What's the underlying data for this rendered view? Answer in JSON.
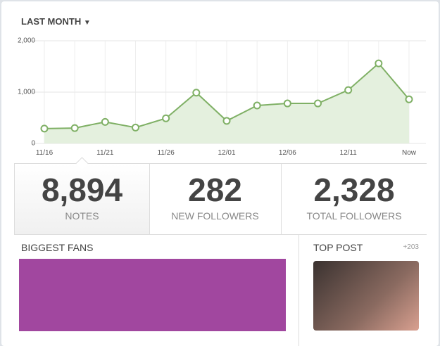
{
  "filter": "LAST MONTH",
  "chart_data": {
    "type": "line",
    "categories": [
      "11/16",
      null,
      "11/21",
      null,
      "11/26",
      null,
      "12/01",
      null,
      "12/06",
      null,
      "12/11",
      null,
      "Now"
    ],
    "series": [
      {
        "color": "#7fb065",
        "values": [
          290,
          300,
          420,
          310,
          490,
          990,
          440,
          740,
          780,
          780,
          1040,
          1560,
          860
        ]
      }
    ],
    "ylim": [
      0,
      2000
    ],
    "yticks": [
      0,
      {
        "value": 1000,
        "label": "1,000"
      },
      {
        "value": 2000,
        "label": "2,000"
      }
    ],
    "grid": true
  },
  "stats": [
    {
      "value": "8,894",
      "label": "NOTES"
    },
    {
      "value": "282",
      "label": "NEW FOLLOWERS"
    },
    {
      "value": "2,328",
      "label": "TOTAL FOLLOWERS"
    }
  ],
  "biggest_fans": {
    "title": "BIGGEST FANS"
  },
  "top_post": {
    "title": "TOP POST",
    "count": "+203"
  }
}
